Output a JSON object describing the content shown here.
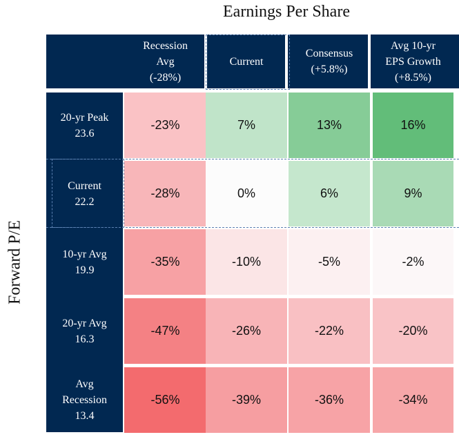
{
  "chart_data": {
    "type": "table",
    "title": "Earnings Per Share",
    "ylabel": "Forward P/E",
    "columns": [
      "Recession\nAvg\n(-28%)",
      "Current",
      "Consensus\n(+5.8%)",
      "Avg 10-yr\nEPS Growth\n(+8.5%)"
    ],
    "rows": [
      "20-yr Peak\n23.6",
      "Current\n22.2",
      "10-yr Avg\n19.9",
      "20-yr Avg\n16.3",
      "Avg\nRecession\n13.4"
    ],
    "values": [
      [
        "-23%",
        "7%",
        "13%",
        "16%"
      ],
      [
        "-28%",
        "0%",
        "6%",
        "9%"
      ],
      [
        "-35%",
        "-10%",
        "-5%",
        "-2%"
      ],
      [
        "-47%",
        "-26%",
        "-22%",
        "-20%"
      ],
      [
        "-56%",
        "-39%",
        "-36%",
        "-34%"
      ]
    ],
    "cell_colors": [
      [
        "#fac2c5",
        "#c0e4c9",
        "#86cc97",
        "#62bd79"
      ],
      [
        "#f8b6b9",
        "#fcfcfc",
        "#c5e7cd",
        "#a9dab5"
      ],
      [
        "#f7a1a4",
        "#fbe5e6",
        "#fcf0f1",
        "#fcf7f8"
      ],
      [
        "#f48184",
        "#f8b4b7",
        "#f9c0c3",
        "#f9c3c6"
      ],
      [
        "#f36b6e",
        "#f69ea1",
        "#f7a3a6",
        "#f7a7a9"
      ]
    ],
    "header_color": "#012851"
  }
}
